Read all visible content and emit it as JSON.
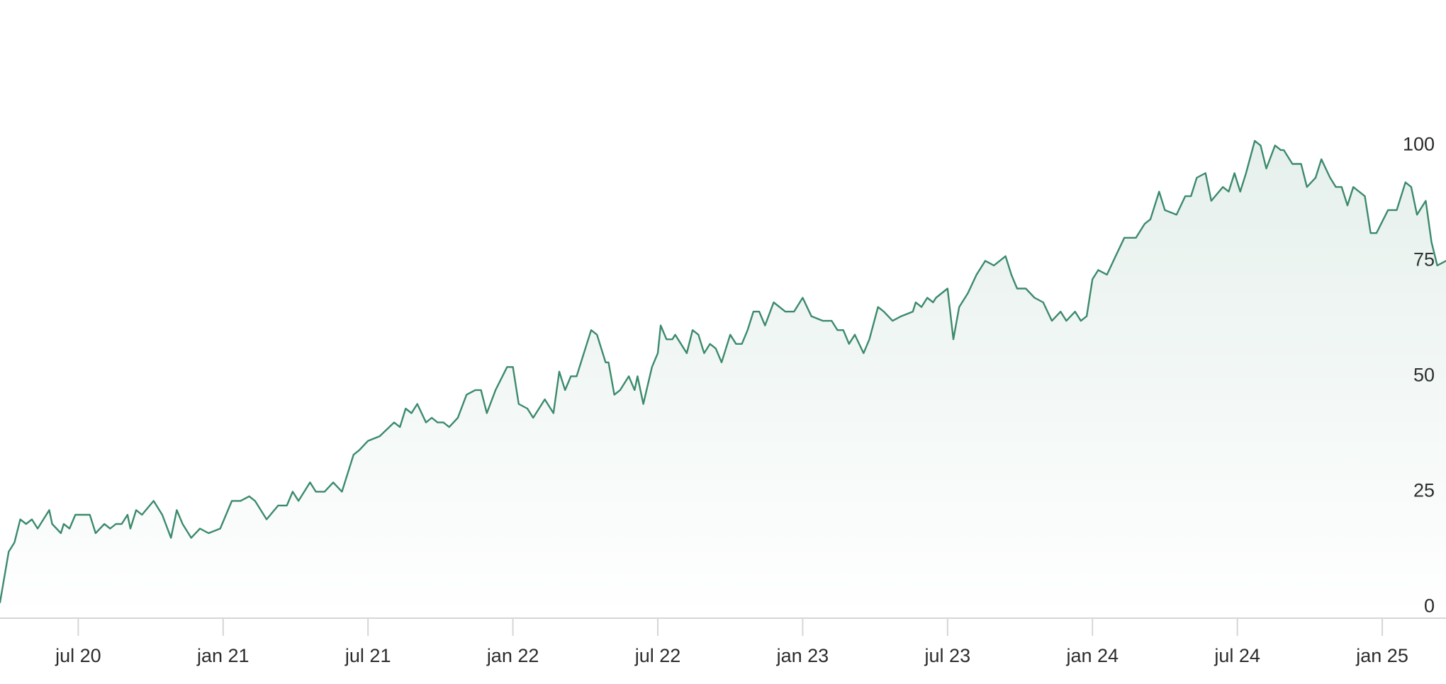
{
  "chart_data": {
    "type": "area",
    "color": "#3b8a6b",
    "grid": false,
    "y_axis_side": "right",
    "x": [
      2020.23,
      2020.26,
      2020.28,
      2020.3,
      2020.32,
      2020.34,
      2020.36,
      2020.4,
      2020.41,
      2020.44,
      2020.45,
      2020.47,
      2020.49,
      2020.54,
      2020.56,
      2020.59,
      2020.61,
      2020.63,
      2020.65,
      2020.67,
      2020.68,
      2020.7,
      2020.72,
      2020.76,
      2020.79,
      2020.82,
      2020.84,
      2020.86,
      2020.89,
      2020.92,
      2020.95,
      2020.99,
      2021.03,
      2021.06,
      2021.09,
      2021.11,
      2021.15,
      2021.19,
      2021.22,
      2021.24,
      2021.26,
      2021.3,
      2021.32,
      2021.35,
      2021.38,
      2021.41,
      2021.45,
      2021.47,
      2021.5,
      2021.54,
      2021.59,
      2021.61,
      2021.63,
      2021.65,
      2021.67,
      2021.7,
      2021.72,
      2021.74,
      2021.76,
      2021.78,
      2021.81,
      2021.84,
      2021.87,
      2021.89,
      2021.91,
      2021.94,
      2021.98,
      2022.0,
      2022.02,
      2022.05,
      2022.07,
      2022.11,
      2022.14,
      2022.16,
      2022.18,
      2022.2,
      2022.22,
      2022.25,
      2022.27,
      2022.29,
      2022.32,
      2022.33,
      2022.35,
      2022.37,
      2022.4,
      2022.42,
      2022.43,
      2022.45,
      2022.48,
      2022.5,
      2022.51,
      2022.53,
      2022.55,
      2022.56,
      2022.6,
      2022.62,
      2022.64,
      2022.66,
      2022.68,
      2022.7,
      2022.72,
      2022.75,
      2022.77,
      2022.79,
      2022.81,
      2022.83,
      2022.85,
      2022.87,
      2022.9,
      2022.94,
      2022.97,
      2023.0,
      2023.03,
      2023.07,
      2023.1,
      2023.12,
      2023.14,
      2023.16,
      2023.18,
      2023.21,
      2023.23,
      2023.26,
      2023.28,
      2023.31,
      2023.34,
      2023.38,
      2023.39,
      2023.41,
      2023.43,
      2023.45,
      2023.46,
      2023.5,
      2023.52,
      2023.54,
      2023.57,
      2023.6,
      2023.63,
      2023.66,
      2023.7,
      2023.72,
      2023.74,
      2023.77,
      2023.8,
      2023.83,
      2023.86,
      2023.89,
      2023.91,
      2023.94,
      2023.96,
      2023.98,
      2024.0,
      2024.02,
      2024.05,
      2024.08,
      2024.11,
      2024.13,
      2024.15,
      2024.18,
      2024.2,
      2024.23,
      2024.25,
      2024.29,
      2024.32,
      2024.34,
      2024.36,
      2024.39,
      2024.41,
      2024.45,
      2024.47,
      2024.49,
      2024.51,
      2024.53,
      2024.56,
      2024.58,
      2024.6,
      2024.63,
      2024.65,
      2024.66,
      2024.69,
      2024.72,
      2024.74,
      2024.77,
      2024.79,
      2024.82,
      2024.84,
      2024.86,
      2024.88,
      2024.9,
      2024.94,
      2024.96,
      2024.98,
      2025.02,
      2025.05,
      2025.08,
      2025.1,
      2025.12,
      2025.15,
      2025.17,
      2025.19,
      2025.22
    ],
    "values": [
      1,
      12,
      14,
      19,
      18,
      19,
      17,
      21,
      18,
      16,
      18,
      17,
      20,
      20,
      16,
      18,
      17,
      18,
      18,
      20,
      17,
      21,
      20,
      23,
      20,
      15,
      21,
      18,
      15,
      17,
      16,
      17,
      23,
      23,
      24,
      23,
      19,
      22,
      22,
      25,
      23,
      27,
      25,
      25,
      27,
      25,
      33,
      34,
      36,
      37,
      40,
      39,
      43,
      42,
      44,
      40,
      41,
      40,
      40,
      39,
      41,
      46,
      47,
      47,
      42,
      47,
      52,
      52,
      44,
      43,
      41,
      45,
      42,
      51,
      47,
      50,
      50,
      56,
      60,
      59,
      53,
      53,
      46,
      47,
      50,
      47,
      50,
      44,
      52,
      55,
      61,
      58,
      58,
      59,
      55,
      60,
      59,
      55,
      57,
      56,
      53,
      59,
      57,
      57,
      60,
      64,
      64,
      61,
      66,
      64,
      64,
      67,
      63,
      62,
      62,
      60,
      60,
      57,
      59,
      55,
      58,
      65,
      64,
      62,
      63,
      64,
      66,
      65,
      67,
      66,
      67,
      69,
      58,
      65,
      68,
      72,
      75,
      74,
      76,
      72,
      69,
      69,
      67,
      66,
      62,
      64,
      62,
      64,
      62,
      63,
      71,
      73,
      72,
      76,
      80,
      80,
      80,
      83,
      84,
      90,
      86,
      85,
      89,
      89,
      93,
      94,
      88,
      91,
      90,
      94,
      90,
      94,
      101,
      100,
      95,
      100,
      99,
      99,
      96,
      96,
      91,
      93,
      97,
      93,
      91,
      91,
      87,
      91,
      89,
      81,
      81,
      86,
      86,
      92,
      91,
      85,
      88,
      79,
      74,
      75
    ],
    "xlim": [
      2020.23,
      2025.22
    ],
    "xticks": [
      {
        "value": 2020.5,
        "label": "jul 20"
      },
      {
        "value": 2021.0,
        "label": "jan 21"
      },
      {
        "value": 2021.5,
        "label": "jul 21"
      },
      {
        "value": 2022.0,
        "label": "jan 22"
      },
      {
        "value": 2022.5,
        "label": "jul 22"
      },
      {
        "value": 2023.0,
        "label": "jan 23"
      },
      {
        "value": 2023.5,
        "label": "jul 23"
      },
      {
        "value": 2024.0,
        "label": "jan 24"
      },
      {
        "value": 2024.5,
        "label": "jul 24"
      },
      {
        "value": 2025.0,
        "label": "jan 25"
      }
    ],
    "ylim": [
      -2.4,
      131.5
    ],
    "yticks": [
      0,
      25,
      50,
      75,
      100
    ]
  }
}
